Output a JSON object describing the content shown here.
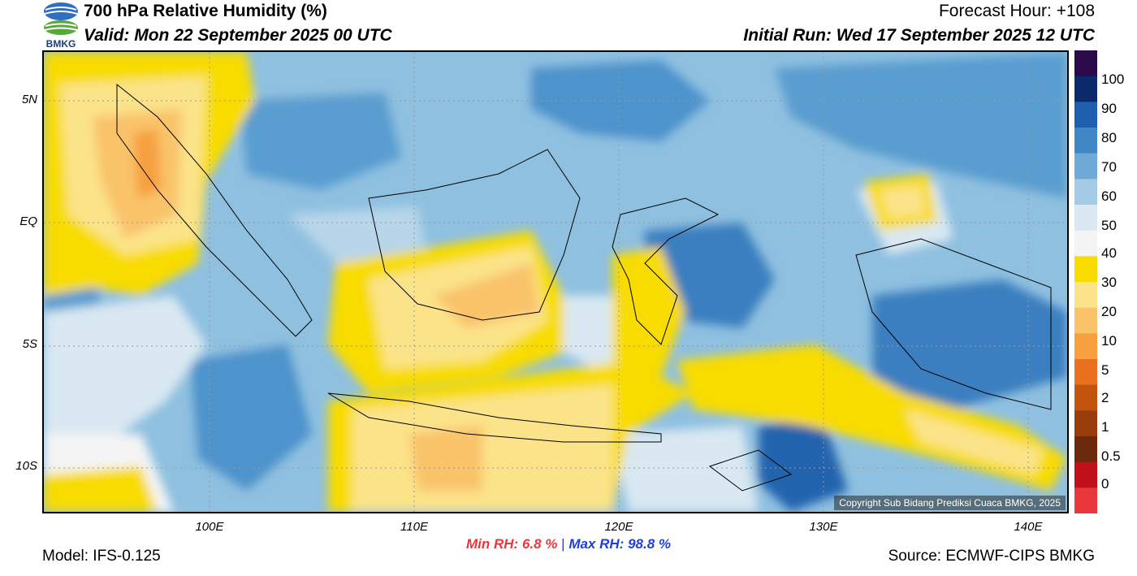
{
  "header": {
    "title": "700 hPa Relative Humidity (%)",
    "valid": "Valid: Mon 22 September 2025 00 UTC",
    "forecast_hour": "Forecast Hour: +108",
    "initial_run": "Initial Run: Wed 17 September 2025 12 UTC",
    "logo_text": "BMKG"
  },
  "map": {
    "lat_labels": [
      "5N",
      "EQ",
      "5S",
      "10S"
    ],
    "lon_labels": [
      "100E",
      "110E",
      "120E",
      "130E",
      "140E"
    ],
    "copyright": "Copyright Sub Bidang Prediksi Cuaca BMKG, 2025"
  },
  "colorbar": {
    "labels": [
      "100",
      "90",
      "80",
      "70",
      "60",
      "50",
      "40",
      "30",
      "20",
      "10",
      "5",
      "2",
      "1",
      "0.5",
      "0"
    ],
    "colors": [
      "#2a0a4a",
      "#0a2a6b",
      "#1f5fb0",
      "#3f88c5",
      "#6fa9d6",
      "#a3cbe6",
      "#d9e8f2",
      "#f4f4f4",
      "#f8dc00",
      "#fbe38a",
      "#f9c36a",
      "#f7a040",
      "#e9701e",
      "#c3540e",
      "#9a3d0c",
      "#6b2a0c",
      "#c0101a",
      "#e8383d"
    ]
  },
  "footer": {
    "model": "Model: IFS-0.125",
    "source": "Source: ECMWF-CIPS BMKG",
    "min_label": "Min RH:",
    "min_value": "6.8 %",
    "separator": "|",
    "max_label": "Max RH:",
    "max_value": "98.8 %"
  }
}
